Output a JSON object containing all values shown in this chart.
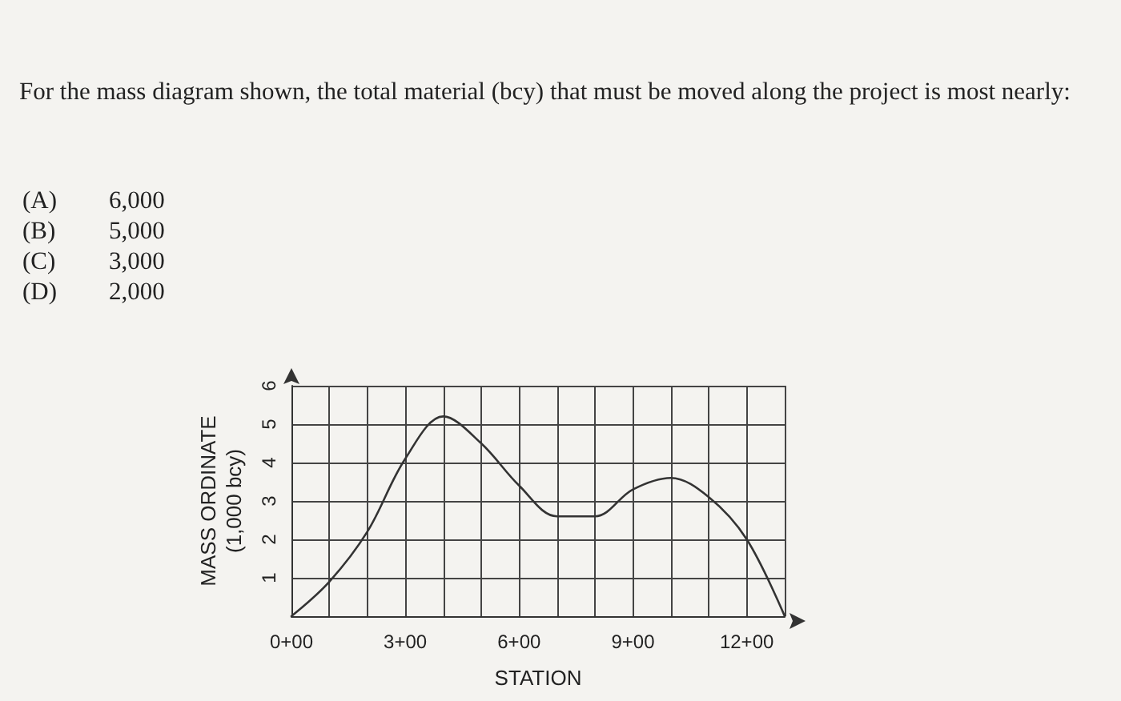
{
  "chart_data": {
    "type": "line",
    "title": "For the mass diagram shown, the total material (bcy) that must be moved along the project is most nearly:",
    "annotations": [
      "(A)\t6,000",
      "(B)\t5,000",
      "(C)\t3,000",
      "(D)\t2,000"
    ],
    "xlabel": "STATION",
    "ylabel": "MASS ORDINATE\n(1,000 bcy)",
    "categories": [
      "0+00",
      null,
      null,
      "3+00",
      null,
      null,
      "6+00",
      null,
      null,
      "9+00",
      null,
      null,
      "12+00",
      null
    ],
    "values": [
      0,
      0.9,
      2.2,
      4.1,
      5.2,
      4.5,
      3.4,
      2.6,
      2.6,
      3.3,
      3.6,
      3.1,
      2.0,
      0
    ],
    "color": "#333333",
    "marker": "none",
    "line_style": "solid",
    "grid": true,
    "ylim": [
      0,
      6
    ],
    "yticks": [
      {
        "value": 0,
        "label": null
      },
      1,
      2,
      3,
      4,
      5,
      6
    ]
  }
}
